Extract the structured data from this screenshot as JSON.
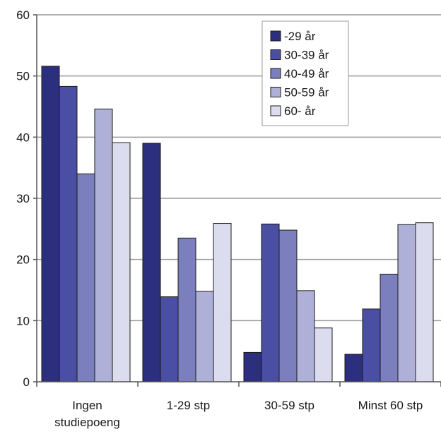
{
  "chart_data": {
    "type": "bar",
    "categories": [
      [
        "Ingen",
        "studiepoeng"
      ],
      [
        "1-29 stp"
      ],
      [
        "30-59 stp"
      ],
      [
        "Minst 60 stp"
      ]
    ],
    "series": [
      {
        "name": "-29 år",
        "color": "#2b2f7e",
        "values": [
          51.6,
          39.0,
          4.8,
          4.5
        ]
      },
      {
        "name": "30-39 år",
        "color": "#4a4fa3",
        "values": [
          48.3,
          13.9,
          25.8,
          11.9
        ]
      },
      {
        "name": "40-49 år",
        "color": "#7b7fbd",
        "values": [
          34.0,
          23.5,
          24.8,
          17.6
        ]
      },
      {
        "name": "50-59 år",
        "color": "#afb0d8",
        "values": [
          44.6,
          14.8,
          14.9,
          25.7
        ]
      },
      {
        "name": "60- år",
        "color": "#dcdcef",
        "values": [
          39.1,
          25.9,
          8.8,
          26.0
        ]
      }
    ],
    "yticks": [
      0,
      10,
      20,
      30,
      40,
      50,
      60
    ],
    "ylim": [
      0,
      60
    ],
    "grid": true,
    "legend": "top-center"
  }
}
